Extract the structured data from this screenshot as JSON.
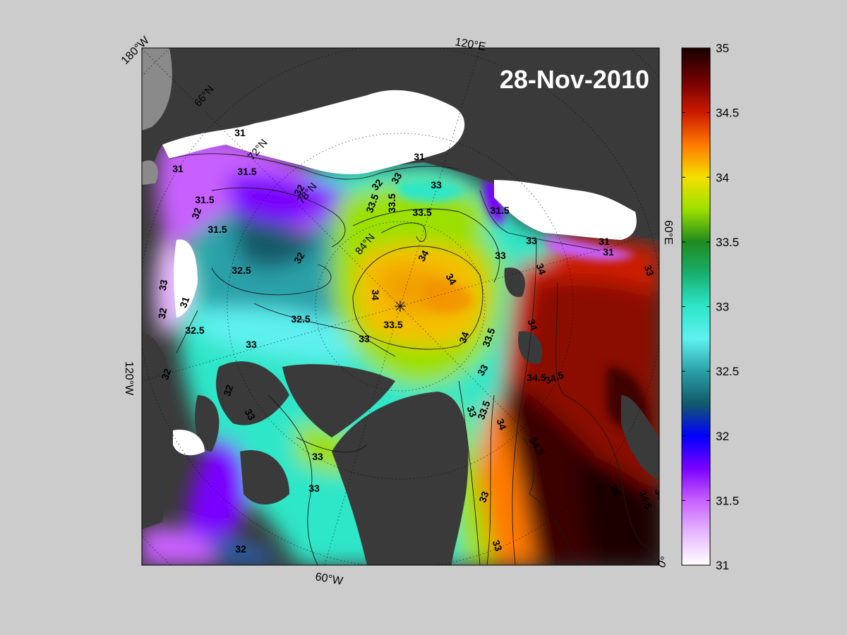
{
  "date_label": "28-Nov-2010",
  "colors": {
    "page_background": "#cccccc",
    "land": "#3a3a3a",
    "ice": "#ffffff",
    "contour": "#1a1a1a",
    "label_text": "#000000",
    "date_text": "#ffffff"
  },
  "edge_labels": {
    "top_left": "180°W",
    "top": "120°E",
    "right": "60°E",
    "left": "120°W",
    "bottom": "60°W",
    "bottom_right": "0°"
  },
  "interior_labels": {
    "lat_66": "66°N",
    "lat_72": "72°N",
    "lat_78": "78°N",
    "lat_84": "84°N"
  },
  "colorbar": {
    "min": 31,
    "max": 35,
    "ticks": [
      "35",
      "34.5",
      "34",
      "33.5",
      "33",
      "32.5",
      "32",
      "31.5",
      "31"
    ],
    "stops": [
      {
        "value": 35.0,
        "color": "#1a0000"
      },
      {
        "value": 34.75,
        "color": "#6e0000"
      },
      {
        "value": 34.5,
        "color": "#cc1a00"
      },
      {
        "value": 34.25,
        "color": "#ff7a00"
      },
      {
        "value": 34.0,
        "color": "#f4e000"
      },
      {
        "value": 33.75,
        "color": "#9be000"
      },
      {
        "value": 33.5,
        "color": "#1f8a1f"
      },
      {
        "value": 33.25,
        "color": "#19b070"
      },
      {
        "value": 33.0,
        "color": "#2ee6c8"
      },
      {
        "value": 32.75,
        "color": "#5ff0f0"
      },
      {
        "value": 32.5,
        "color": "#2aa0a8"
      },
      {
        "value": 32.25,
        "color": "#125a6a"
      },
      {
        "value": 32.0,
        "color": "#0000ff"
      },
      {
        "value": 31.75,
        "color": "#7a00ff"
      },
      {
        "value": 31.5,
        "color": "#c860ff"
      },
      {
        "value": 31.25,
        "color": "#e8b8ff"
      },
      {
        "value": 31.0,
        "color": "#ffffff"
      }
    ]
  },
  "contour_labels": [
    "31",
    "31.5",
    "31",
    "31.5",
    "32",
    "31.5",
    "32.5",
    "31",
    "33",
    "32.5",
    "32",
    "32.5",
    "32",
    "33",
    "32",
    "33",
    "32",
    "33",
    "32",
    "33.5",
    "33.5",
    "33",
    "33.5",
    "33",
    "33",
    "32",
    "31",
    "31.5",
    "31",
    "31",
    "33",
    "34",
    "34",
    "34",
    "33.5",
    "33",
    "34",
    "33.5",
    "33",
    "34",
    "34",
    "34.5",
    "33",
    "33.5",
    "34",
    "34.5",
    "33",
    "33",
    "35",
    "34.5",
    "34"
  ]
}
